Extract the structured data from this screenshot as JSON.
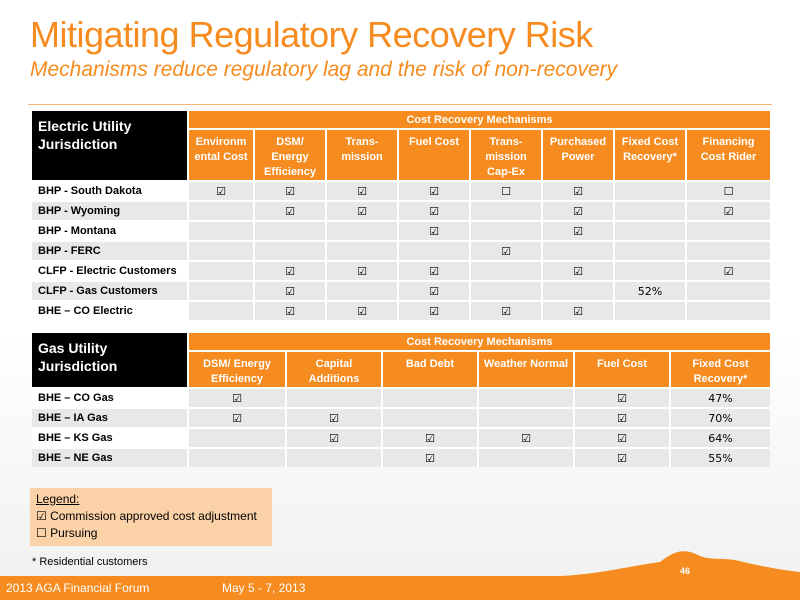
{
  "title": "Mitigating Regulatory Recovery Risk",
  "subtitle": "Mechanisms  reduce regulatory lag and the risk of non-recovery",
  "electric": {
    "jurisdiction_label_1": "Electric Utility",
    "jurisdiction_label_2": "Jurisdiction",
    "group_header": "Cost Recovery Mechanisms",
    "columns": [
      [
        "Environm",
        "ental Cost"
      ],
      [
        "DSM/",
        "Energy",
        "Efficiency"
      ],
      [
        "Trans-",
        "mission"
      ],
      [
        "Fuel Cost"
      ],
      [
        "Trans-",
        "mission",
        "Cap-Ex"
      ],
      [
        "Purchased",
        "Power"
      ],
      [
        "Fixed Cost",
        "Recovery*"
      ],
      [
        "Financing",
        "Cost Rider"
      ]
    ],
    "rows": [
      {
        "name": "BHP - South Dakota",
        "cells": [
          "☑",
          "☑",
          "☑",
          "☑",
          "☐",
          "☑",
          "",
          "☐"
        ]
      },
      {
        "name": "BHP - Wyoming",
        "cells": [
          "",
          "☑",
          "☑",
          "☑",
          "",
          "☑",
          "",
          "☑"
        ]
      },
      {
        "name": "BHP - Montana",
        "cells": [
          "",
          "",
          "",
          "☑",
          "",
          "☑",
          "",
          ""
        ]
      },
      {
        "name": "BHP - FERC",
        "cells": [
          "",
          "",
          "",
          "",
          "☑",
          "",
          "",
          ""
        ]
      },
      {
        "name": "CLFP - Electric Customers",
        "cells": [
          "",
          "☑",
          "☑",
          "☑",
          "",
          "☑",
          "",
          "☑"
        ]
      },
      {
        "name": "CLFP - Gas Customers",
        "cells": [
          "",
          "☑",
          "",
          "☑",
          "",
          "",
          "52%",
          ""
        ]
      },
      {
        "name": "BHE – CO Electric",
        "cells": [
          "",
          "☑",
          "☑",
          "☑",
          "☑",
          "☑",
          "",
          ""
        ]
      }
    ]
  },
  "gas": {
    "jurisdiction_label_1": "Gas Utility",
    "jurisdiction_label_2": " Jurisdiction",
    "group_header": "Cost Recovery Mechanisms",
    "columns": [
      [
        "DSM/ Energy",
        "Efficiency"
      ],
      [
        "Capital",
        "Additions"
      ],
      [
        "Bad Debt"
      ],
      [
        "Weather Normal"
      ],
      [
        "Fuel Cost"
      ],
      [
        "Fixed Cost",
        "Recovery*"
      ]
    ],
    "rows": [
      {
        "name": "BHE – CO Gas",
        "cells": [
          "☑",
          "",
          "",
          "",
          "☑",
          "47%"
        ]
      },
      {
        "name": "BHE – IA Gas",
        "cells": [
          "☑",
          "☑",
          "",
          "",
          "☑",
          "70%"
        ]
      },
      {
        "name": "BHE – KS Gas",
        "cells": [
          "",
          "☑",
          "☑",
          "☑",
          "☑",
          "64%"
        ]
      },
      {
        "name": "BHE – NE Gas",
        "cells": [
          "",
          "",
          "☑",
          "",
          "☑",
          "55%"
        ]
      }
    ]
  },
  "legend": {
    "title": "Legend:",
    "approved": "☑ Commission approved cost adjustment",
    "pursuing": "☐ Pursuing"
  },
  "note": "* Residential customers",
  "footer": {
    "event": "2013 AGA Financial Forum",
    "dates": "May 5 - 7, 2013"
  },
  "page_number": "46",
  "colors": {
    "accent": "#f68b1f",
    "header": "#000000",
    "row_shade": "#e8e8e8",
    "legend_bg": "#fbd2a8"
  }
}
